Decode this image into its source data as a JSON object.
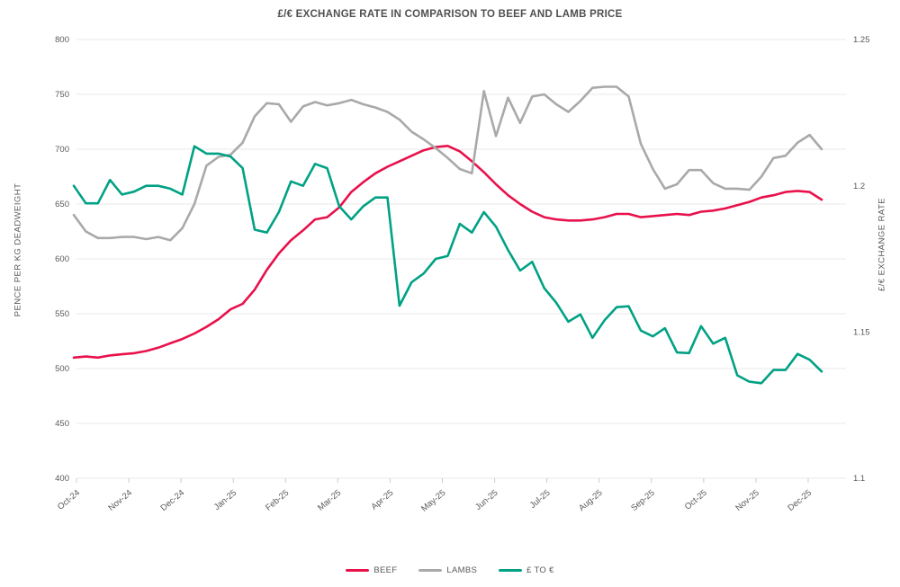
{
  "title": "£/€ EXCHANGE RATE IN COMPARISON TO BEEF AND LAMB PRICE",
  "chart_data": {
    "type": "line",
    "title": "£/€ EXCHANGE RATE IN COMPARISON TO BEEF AND LAMB PRICE",
    "grid": "horizontal",
    "legend_position": "bottom-center",
    "x_tick_labels": [
      "Oct-24",
      "Nov-24",
      "Dec-24",
      "Jan-25",
      "Feb-25",
      "Mar-25",
      "Apr-25",
      "May-25",
      "Jun-25",
      "Jul-25",
      "Aug-25",
      "Sep-25",
      "Oct-25",
      "Nov-25",
      "Dec-25"
    ],
    "left_axis": {
      "label": "PENCE PER KG DEADWEIGHT",
      "ticks": [
        800,
        750,
        700,
        650,
        600,
        550,
        500,
        450,
        400
      ],
      "range": [
        400,
        800
      ]
    },
    "right_axis": {
      "label": "£/€ EXCHANGE RATE",
      "tick_labels": [
        "1.25",
        "1.2",
        "1.15",
        "1.1"
      ],
      "ticks": [
        1.25,
        1.2,
        1.15,
        1.1
      ],
      "range": [
        1.1,
        1.25
      ]
    },
    "frequency": "weekly",
    "series": [
      {
        "name": "BEEF",
        "axis": "left",
        "color": "#e8114b",
        "values": [
          510,
          511,
          510,
          512,
          513,
          514,
          516,
          519,
          523,
          527,
          532,
          538,
          545,
          554,
          559,
          572,
          590,
          605,
          617,
          626,
          636,
          638,
          647,
          661,
          670,
          678,
          684,
          689,
          694,
          699,
          702,
          703,
          698,
          689,
          679,
          668,
          658,
          650,
          643,
          638,
          636,
          635,
          635,
          636,
          638,
          641,
          641,
          638,
          639,
          640,
          641,
          640,
          643,
          644,
          646,
          649,
          652,
          656,
          658,
          661,
          662,
          661,
          654
        ]
      },
      {
        "name": "LAMBS",
        "axis": "left",
        "color": "#a9a9a9",
        "values": [
          640,
          625,
          619,
          619,
          620,
          620,
          618,
          620,
          617,
          628,
          650,
          685,
          693,
          695,
          706,
          730,
          742,
          741,
          725,
          739,
          743,
          740,
          742,
          745,
          741,
          738,
          734,
          727,
          716,
          709,
          701,
          692,
          682,
          678,
          753,
          712,
          747,
          724,
          748,
          750,
          741,
          734,
          744,
          756,
          757,
          757,
          748,
          705,
          682,
          664,
          668,
          681,
          681,
          669,
          664,
          664,
          663,
          675,
          692,
          694,
          706,
          713,
          700
        ]
      },
      {
        "name": "£ TO €",
        "axis": "right",
        "color": "#00a184",
        "values": [
          1.2,
          1.194,
          1.194,
          1.202,
          1.197,
          1.198,
          1.2,
          1.2,
          1.199,
          1.197,
          1.2135,
          1.211,
          1.211,
          1.21,
          1.206,
          1.185,
          1.184,
          1.191,
          1.2015,
          1.2,
          1.2075,
          1.206,
          1.193,
          1.1885,
          1.193,
          1.196,
          1.196,
          1.159,
          1.167,
          1.17,
          1.175,
          1.176,
          1.187,
          1.184,
          1.191,
          1.186,
          1.178,
          1.171,
          1.174,
          1.165,
          1.16,
          1.1535,
          1.156,
          1.148,
          1.154,
          1.1585,
          1.1588,
          1.1505,
          1.1485,
          1.1513,
          1.143,
          1.1428,
          1.152,
          1.146,
          1.148,
          1.1352,
          1.133,
          1.1325,
          1.137,
          1.137,
          1.1425,
          1.1405,
          1.1365
        ]
      }
    ]
  },
  "colors": {
    "gridline": "#e9e9e9",
    "tick": "#cccccc",
    "text": "#595959",
    "title_text": "#4f4f4f"
  }
}
